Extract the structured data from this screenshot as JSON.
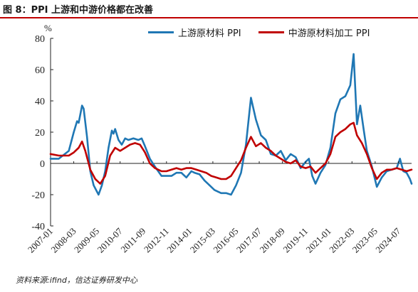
{
  "figure": {
    "title": "图 8：PPI 上游和中游价格都在改善",
    "unit": "%",
    "source": "资料来源:ifind，信达证券研发中心"
  },
  "colors": {
    "upstream": "#1f77b4",
    "midstream": "#c00000",
    "title_rule": "#c00000"
  },
  "chart_data": {
    "type": "line",
    "title": "",
    "xlabel": "",
    "ylabel": "%",
    "ylim": [
      -40,
      80
    ],
    "yticks": [
      -40,
      -20,
      0,
      20,
      40,
      60,
      80
    ],
    "x_tick_labels": [
      "2007-01",
      "2008-03",
      "2009-05",
      "2010-07",
      "2011-09",
      "2012-11",
      "2014-01",
      "2015-03",
      "2016-05",
      "2017-07",
      "2018-09",
      "2019-11",
      "2021-01",
      "2022-03",
      "2023-05",
      "2024-07"
    ],
    "x_range": [
      "2007-01",
      "2025-03"
    ],
    "legend_position": "top",
    "grid": false,
    "series": [
      {
        "name": "上游原材料 PPI",
        "key": "upstream",
        "points": [
          [
            "2007-01",
            3
          ],
          [
            "2007-06",
            3
          ],
          [
            "2007-12",
            8
          ],
          [
            "2008-03",
            20
          ],
          [
            "2008-05",
            27
          ],
          [
            "2008-06",
            26
          ],
          [
            "2008-08",
            37
          ],
          [
            "2008-09",
            35
          ],
          [
            "2008-11",
            17
          ],
          [
            "2009-01",
            -5
          ],
          [
            "2009-03",
            -14
          ],
          [
            "2009-05",
            -18
          ],
          [
            "2009-06",
            -20
          ],
          [
            "2009-08",
            -14
          ],
          [
            "2009-10",
            -5
          ],
          [
            "2009-12",
            10
          ],
          [
            "2010-02",
            21
          ],
          [
            "2010-03",
            19
          ],
          [
            "2010-04",
            22
          ],
          [
            "2010-06",
            15
          ],
          [
            "2010-08",
            12
          ],
          [
            "2010-10",
            16
          ],
          [
            "2010-12",
            15
          ],
          [
            "2011-03",
            16
          ],
          [
            "2011-06",
            15
          ],
          [
            "2011-08",
            16
          ],
          [
            "2011-10",
            11
          ],
          [
            "2012-01",
            3
          ],
          [
            "2012-04",
            -2
          ],
          [
            "2012-08",
            -8
          ],
          [
            "2012-11",
            -8
          ],
          [
            "2013-02",
            -8
          ],
          [
            "2013-05",
            -6
          ],
          [
            "2013-08",
            -6
          ],
          [
            "2013-11",
            -9
          ],
          [
            "2014-02",
            -5
          ],
          [
            "2014-04",
            -6
          ],
          [
            "2014-07",
            -7
          ],
          [
            "2014-10",
            -11
          ],
          [
            "2015-01",
            -14
          ],
          [
            "2015-04",
            -17
          ],
          [
            "2015-08",
            -19
          ],
          [
            "2015-11",
            -19
          ],
          [
            "2016-02",
            -20
          ],
          [
            "2016-05",
            -14
          ],
          [
            "2016-08",
            -6
          ],
          [
            "2016-11",
            12
          ],
          [
            "2017-02",
            42
          ],
          [
            "2017-05",
            28
          ],
          [
            "2017-08",
            18
          ],
          [
            "2017-11",
            15
          ],
          [
            "2018-02",
            6
          ],
          [
            "2018-05",
            5
          ],
          [
            "2018-08",
            8
          ],
          [
            "2018-11",
            2
          ],
          [
            "2019-02",
            6
          ],
          [
            "2019-05",
            4
          ],
          [
            "2019-08",
            -3
          ],
          [
            "2019-11",
            1
          ],
          [
            "2020-01",
            3
          ],
          [
            "2020-03",
            -8
          ],
          [
            "2020-05",
            -13
          ],
          [
            "2020-08",
            -6
          ],
          [
            "2020-11",
            -1
          ],
          [
            "2021-02",
            10
          ],
          [
            "2021-05",
            32
          ],
          [
            "2021-08",
            41
          ],
          [
            "2021-11",
            43
          ],
          [
            "2022-02",
            50
          ],
          [
            "2022-04",
            70
          ],
          [
            "2022-06",
            25
          ],
          [
            "2022-08",
            37
          ],
          [
            "2022-10",
            22
          ],
          [
            "2022-12",
            8
          ],
          [
            "2023-03",
            -2
          ],
          [
            "2023-06",
            -15
          ],
          [
            "2023-09",
            -9
          ],
          [
            "2023-12",
            -5
          ],
          [
            "2024-03",
            -4
          ],
          [
            "2024-06",
            -3
          ],
          [
            "2024-08",
            3
          ],
          [
            "2024-10",
            -5
          ],
          [
            "2024-12",
            -6
          ],
          [
            "2025-02",
            -10
          ],
          [
            "2025-03",
            -13
          ]
        ]
      },
      {
        "name": "中游原材料加工 PPI",
        "key": "midstream",
        "points": [
          [
            "2007-01",
            6
          ],
          [
            "2007-06",
            5
          ],
          [
            "2007-12",
            5
          ],
          [
            "2008-03",
            7
          ],
          [
            "2008-06",
            10
          ],
          [
            "2008-08",
            14
          ],
          [
            "2008-10",
            8
          ],
          [
            "2009-01",
            -4
          ],
          [
            "2009-04",
            -10
          ],
          [
            "2009-07",
            -13
          ],
          [
            "2009-10",
            -8
          ],
          [
            "2010-01",
            5
          ],
          [
            "2010-04",
            10
          ],
          [
            "2010-07",
            8
          ],
          [
            "2010-10",
            10
          ],
          [
            "2011-01",
            12
          ],
          [
            "2011-04",
            13
          ],
          [
            "2011-07",
            12
          ],
          [
            "2011-10",
            7
          ],
          [
            "2012-01",
            0
          ],
          [
            "2012-04",
            -3
          ],
          [
            "2012-08",
            -5
          ],
          [
            "2012-11",
            -5
          ],
          [
            "2013-02",
            -4
          ],
          [
            "2013-05",
            -3
          ],
          [
            "2013-08",
            -4
          ],
          [
            "2013-11",
            -3
          ],
          [
            "2014-02",
            -3
          ],
          [
            "2014-05",
            -4
          ],
          [
            "2014-08",
            -5
          ],
          [
            "2014-11",
            -6
          ],
          [
            "2015-02",
            -8
          ],
          [
            "2015-05",
            -9
          ],
          [
            "2015-08",
            -10
          ],
          [
            "2015-11",
            -10
          ],
          [
            "2016-02",
            -8
          ],
          [
            "2016-05",
            -3
          ],
          [
            "2016-08",
            2
          ],
          [
            "2016-11",
            10
          ],
          [
            "2017-02",
            17
          ],
          [
            "2017-05",
            11
          ],
          [
            "2017-08",
            13
          ],
          [
            "2017-11",
            10
          ],
          [
            "2018-02",
            8
          ],
          [
            "2018-05",
            5
          ],
          [
            "2018-08",
            3
          ],
          [
            "2018-11",
            1
          ],
          [
            "2019-02",
            0
          ],
          [
            "2019-05",
            2
          ],
          [
            "2019-08",
            -2
          ],
          [
            "2019-11",
            -3
          ],
          [
            "2020-02",
            -2
          ],
          [
            "2020-05",
            -6
          ],
          [
            "2020-08",
            -3
          ],
          [
            "2020-11",
            0
          ],
          [
            "2021-02",
            6
          ],
          [
            "2021-05",
            17
          ],
          [
            "2021-08",
            20
          ],
          [
            "2021-11",
            22
          ],
          [
            "2022-02",
            25
          ],
          [
            "2022-04",
            26
          ],
          [
            "2022-06",
            18
          ],
          [
            "2022-09",
            13
          ],
          [
            "2022-12",
            6
          ],
          [
            "2023-03",
            -3
          ],
          [
            "2023-06",
            -10
          ],
          [
            "2023-09",
            -6
          ],
          [
            "2023-12",
            -4
          ],
          [
            "2024-03",
            -4
          ],
          [
            "2024-06",
            -3
          ],
          [
            "2024-09",
            -4
          ],
          [
            "2024-12",
            -5
          ],
          [
            "2025-03",
            -4
          ]
        ]
      }
    ]
  }
}
